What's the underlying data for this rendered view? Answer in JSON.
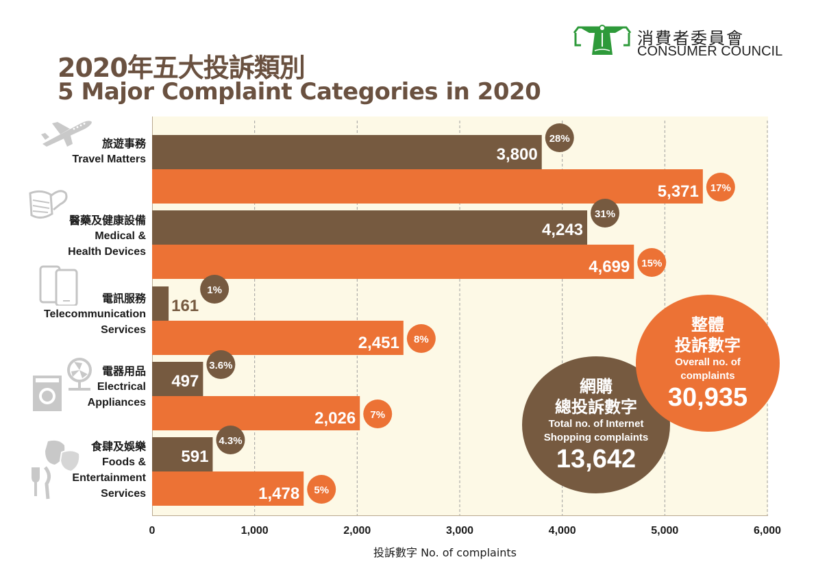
{
  "header": {
    "title_zh": "2020年五大投訴類別",
    "title_en": "5 Major Complaint Categories in 2020"
  },
  "logo": {
    "name_zh": "消費者委員會",
    "name_en": "CONSUMER COUNCIL",
    "color": "#2e9a3a"
  },
  "colors": {
    "internet_shopping": "#765a40",
    "overall": "#ec7235",
    "plot_background": "#fdf9e6",
    "title": "#6a5140"
  },
  "summary": {
    "internet": {
      "zh_line1": "網購",
      "zh_line2": "總投訴數字",
      "en_line1": "Total no. of Internet",
      "en_line2": "Shopping complaints",
      "value": "13,642"
    },
    "overall": {
      "zh_line1": "整體",
      "zh_line2": "投訴數字",
      "en_line1": "Overall no. of",
      "en_line2": "complaints",
      "value": "30,935"
    }
  },
  "chart_data": {
    "type": "bar",
    "orientation": "horizontal",
    "title": "5 Major Complaint Categories in 2020",
    "xlabel": "投訴數字 No. of complaints",
    "ylabel": "",
    "xlim": [
      0,
      6000
    ],
    "xticks": [
      "0",
      "1,000",
      "2,000",
      "3,000",
      "4,000",
      "5,000",
      "6,000"
    ],
    "grid": "vertical dashed",
    "categories": [
      {
        "zh": "旅遊事務",
        "en_lines": [
          "Travel Matters"
        ],
        "icon": "airplane-icon"
      },
      {
        "zh": "醫藥及健康設備",
        "en_lines": [
          "Medical &",
          "Health Devices"
        ],
        "icon": "mask-icon"
      },
      {
        "zh": "電訊服務",
        "en_lines": [
          "Telecommunication",
          "Services"
        ],
        "icon": "phone-icon"
      },
      {
        "zh": "電器用品",
        "en_lines": [
          "Electrical",
          "Appliances"
        ],
        "icon": "appliance-icon"
      },
      {
        "zh": "食肆及娛樂",
        "en_lines": [
          "Foods &",
          "Entertainment",
          "Services"
        ],
        "icon": "theatre-masks-icon"
      }
    ],
    "series": [
      {
        "name": "Internet Shopping complaints",
        "values": [
          3800,
          4243,
          161,
          497,
          591
        ],
        "labels": [
          "3,800",
          "4,243",
          "161",
          "497",
          "591"
        ],
        "percentages": [
          "28%",
          "31%",
          "1%",
          "3.6%",
          "4.3%"
        ]
      },
      {
        "name": "Overall complaints",
        "values": [
          5371,
          4699,
          2451,
          2026,
          1478
        ],
        "labels": [
          "5,371",
          "4,699",
          "2,451",
          "2,026",
          "1,478"
        ],
        "percentages": [
          "17%",
          "15%",
          "8%",
          "7%",
          "5%"
        ]
      }
    ]
  }
}
